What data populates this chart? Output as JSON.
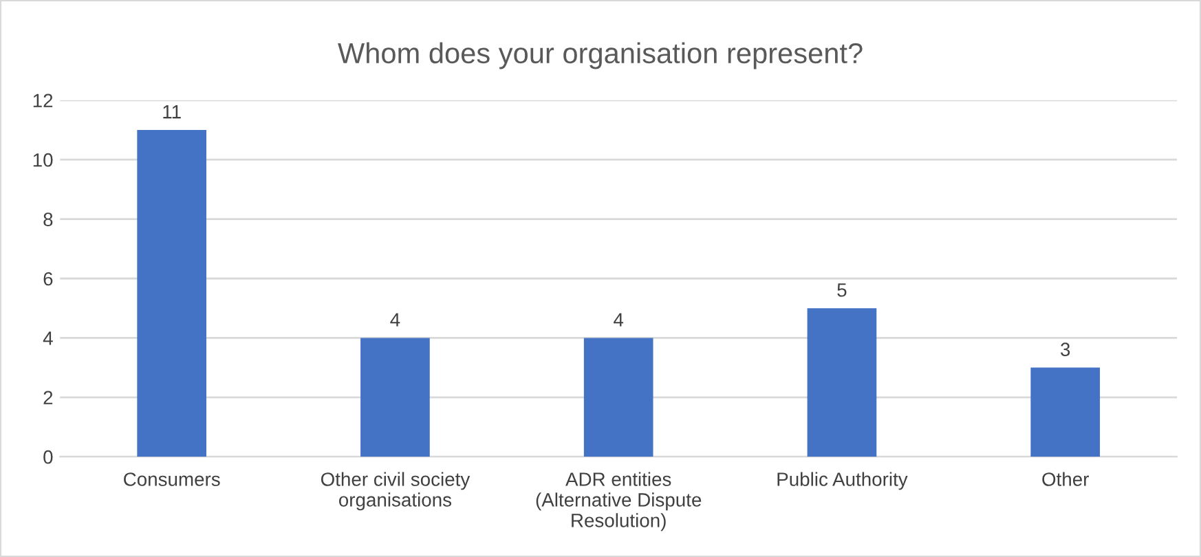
{
  "chart_data": {
    "type": "bar",
    "title": "Whom does your organisation represent?",
    "categories": [
      "Consumers",
      "Other civil society\norganisations",
      "ADR entities\n(Alternative Dispute\nResolution)",
      "Public Authority",
      "Other"
    ],
    "values": [
      11,
      4,
      4,
      5,
      3
    ],
    "color": "#4472c4",
    "ylim": [
      0,
      12
    ],
    "yticks": [
      0,
      2,
      4,
      6,
      8,
      10,
      12
    ],
    "grid": "y",
    "data_labels": true
  }
}
